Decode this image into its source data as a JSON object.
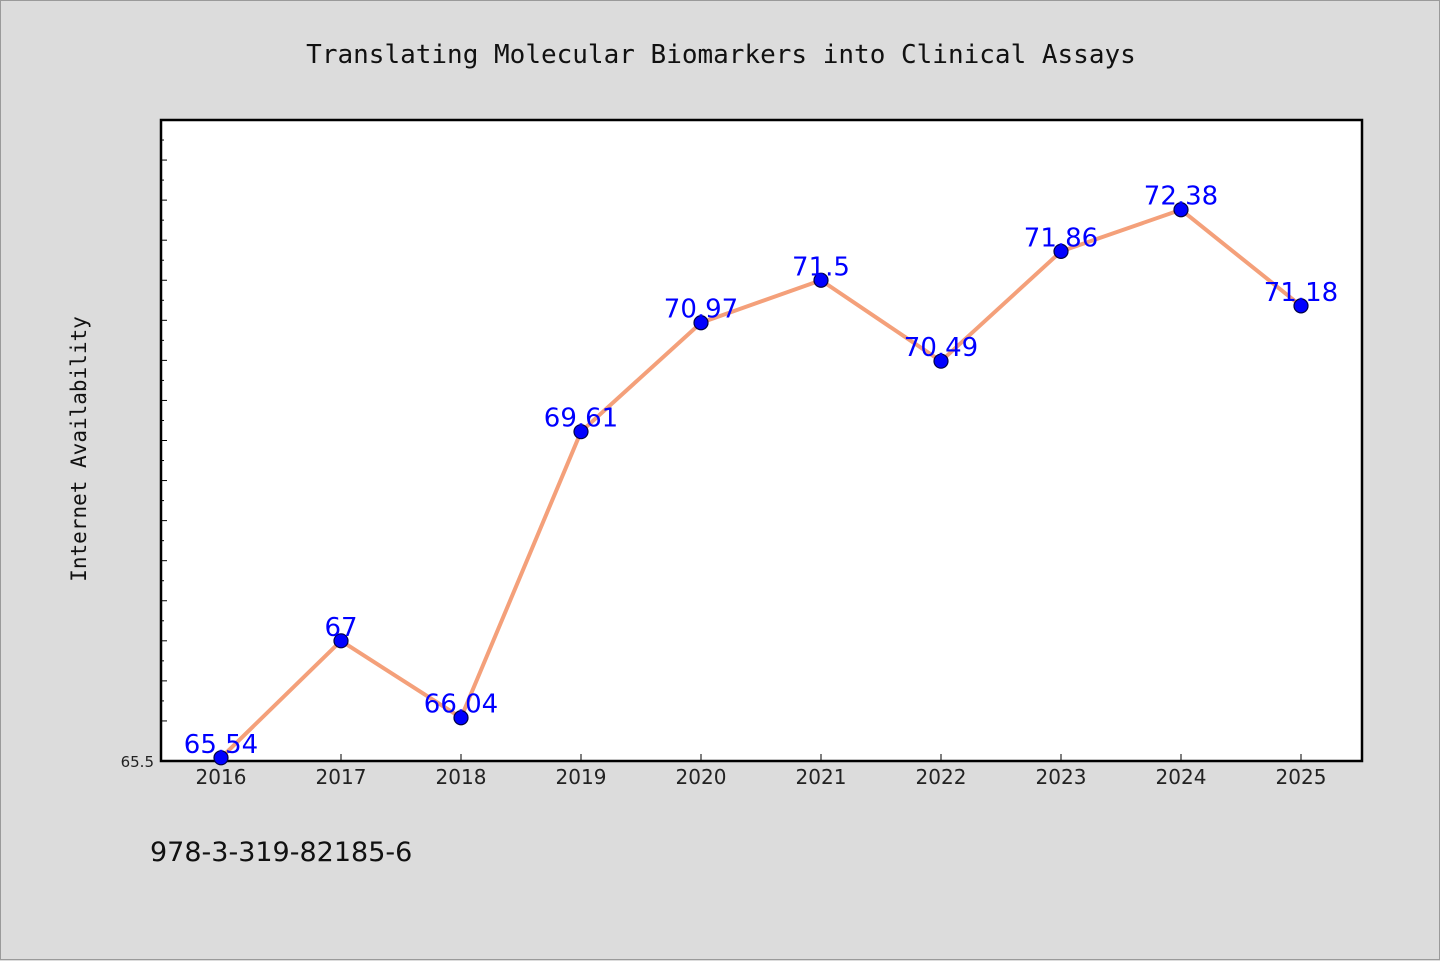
{
  "chart_data": {
    "type": "line",
    "title": "Translating Molecular Biomarkers into Clinical Assays",
    "xlabel": "",
    "ylabel": "Internet Availability",
    "categories": [
      "2016",
      "2017",
      "2018",
      "2019",
      "2020",
      "2021",
      "2022",
      "2023",
      "2024",
      "2025"
    ],
    "values": [
      65.54,
      67,
      66.04,
      69.61,
      70.97,
      71.5,
      70.49,
      71.86,
      72.38,
      71.18
    ],
    "data_labels": [
      "65.54",
      "67",
      "66.04",
      "69.61",
      "70.97",
      "71.5",
      "70.49",
      "71.86",
      "72.38",
      "71.18"
    ],
    "ylim": [
      65.5,
      73.5
    ],
    "y_tick_label": "65.5",
    "y_minor_tick_step": 0.5,
    "grid": false,
    "line_color": "#f4a07a",
    "marker_color": "#0000ff",
    "label_color": "#0000ff"
  },
  "footer": {
    "isbn": "978-3-319-82185-6"
  }
}
